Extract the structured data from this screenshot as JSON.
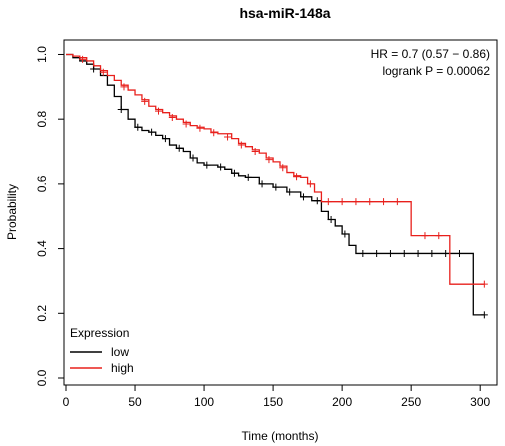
{
  "chart_data": {
    "type": "line",
    "subtype": "kaplan-meier",
    "title": "hsa-miR-148a",
    "xlabel": "Time (months)",
    "ylabel": "Probability",
    "xlim": [
      0,
      310
    ],
    "ylim": [
      0,
      1.02
    ],
    "x_ticks": [
      0,
      50,
      100,
      150,
      200,
      250,
      300
    ],
    "y_ticks": [
      0.0,
      0.2,
      0.4,
      0.6,
      0.8,
      1.0
    ],
    "x_tick_labels": [
      "0",
      "50",
      "100",
      "150",
      "200",
      "250",
      "300"
    ],
    "y_tick_labels": [
      "0.0",
      "0.2",
      "0.4",
      "0.6",
      "0.8",
      "1.0"
    ],
    "grid": false,
    "legend": {
      "title": "Expression",
      "placement": "bottom-left",
      "entries": [
        "low",
        "high"
      ]
    },
    "annotations": [
      "HR = 0.7 (0.57 − 0.86)",
      "logrank P = 0.00062"
    ],
    "series": [
      {
        "name": "low",
        "color": "#000000",
        "steps": [
          [
            0,
            1.0
          ],
          [
            5,
            0.99
          ],
          [
            10,
            0.98
          ],
          [
            15,
            0.97
          ],
          [
            20,
            0.955
          ],
          [
            25,
            0.935
          ],
          [
            30,
            0.905
          ],
          [
            35,
            0.87
          ],
          [
            40,
            0.83
          ],
          [
            45,
            0.8
          ],
          [
            50,
            0.775
          ],
          [
            55,
            0.765
          ],
          [
            60,
            0.76
          ],
          [
            65,
            0.75
          ],
          [
            70,
            0.74
          ],
          [
            75,
            0.72
          ],
          [
            80,
            0.71
          ],
          [
            85,
            0.7
          ],
          [
            90,
            0.68
          ],
          [
            95,
            0.665
          ],
          [
            100,
            0.658
          ],
          [
            110,
            0.652
          ],
          [
            115,
            0.645
          ],
          [
            120,
            0.633
          ],
          [
            125,
            0.625
          ],
          [
            130,
            0.62
          ],
          [
            140,
            0.6
          ],
          [
            150,
            0.59
          ],
          [
            160,
            0.575
          ],
          [
            170,
            0.56
          ],
          [
            178,
            0.548
          ],
          [
            185,
            0.515
          ],
          [
            190,
            0.49
          ],
          [
            195,
            0.47
          ],
          [
            200,
            0.445
          ],
          [
            205,
            0.41
          ],
          [
            210,
            0.385
          ],
          [
            295,
            0.195
          ],
          [
            303,
            0.195
          ]
        ],
        "censors": [
          [
            20,
            0.955
          ],
          [
            40,
            0.83
          ],
          [
            52,
            0.775
          ],
          [
            62,
            0.76
          ],
          [
            72,
            0.74
          ],
          [
            82,
            0.71
          ],
          [
            92,
            0.68
          ],
          [
            102,
            0.658
          ],
          [
            112,
            0.652
          ],
          [
            122,
            0.633
          ],
          [
            132,
            0.62
          ],
          [
            142,
            0.6
          ],
          [
            152,
            0.59
          ],
          [
            162,
            0.575
          ],
          [
            172,
            0.56
          ],
          [
            182,
            0.548
          ],
          [
            192,
            0.49
          ],
          [
            202,
            0.445
          ],
          [
            215,
            0.385
          ],
          [
            225,
            0.385
          ],
          [
            235,
            0.385
          ],
          [
            245,
            0.385
          ],
          [
            255,
            0.385
          ],
          [
            265,
            0.385
          ],
          [
            275,
            0.385
          ],
          [
            285,
            0.385
          ],
          [
            303,
            0.195
          ]
        ]
      },
      {
        "name": "high",
        "color": "#e8201c",
        "steps": [
          [
            0,
            1.0
          ],
          [
            5,
            0.995
          ],
          [
            10,
            0.99
          ],
          [
            15,
            0.98
          ],
          [
            20,
            0.965
          ],
          [
            25,
            0.95
          ],
          [
            30,
            0.935
          ],
          [
            35,
            0.92
          ],
          [
            40,
            0.905
          ],
          [
            45,
            0.89
          ],
          [
            50,
            0.875
          ],
          [
            55,
            0.86
          ],
          [
            60,
            0.84
          ],
          [
            65,
            0.83
          ],
          [
            70,
            0.82
          ],
          [
            75,
            0.81
          ],
          [
            80,
            0.8
          ],
          [
            85,
            0.79
          ],
          [
            90,
            0.78
          ],
          [
            95,
            0.775
          ],
          [
            100,
            0.77
          ],
          [
            105,
            0.76
          ],
          [
            110,
            0.755
          ],
          [
            120,
            0.74
          ],
          [
            125,
            0.725
          ],
          [
            130,
            0.715
          ],
          [
            135,
            0.705
          ],
          [
            140,
            0.695
          ],
          [
            145,
            0.68
          ],
          [
            150,
            0.668
          ],
          [
            155,
            0.655
          ],
          [
            160,
            0.635
          ],
          [
            165,
            0.625
          ],
          [
            170,
            0.62
          ],
          [
            175,
            0.6
          ],
          [
            180,
            0.575
          ],
          [
            185,
            0.545
          ],
          [
            250,
            0.44
          ],
          [
            278,
            0.29
          ],
          [
            303,
            0.29
          ]
        ],
        "censors": [
          [
            12,
            0.985
          ],
          [
            27,
            0.945
          ],
          [
            42,
            0.9
          ],
          [
            57,
            0.855
          ],
          [
            67,
            0.825
          ],
          [
            77,
            0.805
          ],
          [
            87,
            0.785
          ],
          [
            97,
            0.772
          ],
          [
            107,
            0.758
          ],
          [
            117,
            0.745
          ],
          [
            127,
            0.72
          ],
          [
            137,
            0.7
          ],
          [
            147,
            0.675
          ],
          [
            157,
            0.65
          ],
          [
            167,
            0.622
          ],
          [
            177,
            0.6
          ],
          [
            190,
            0.545
          ],
          [
            200,
            0.545
          ],
          [
            210,
            0.545
          ],
          [
            220,
            0.545
          ],
          [
            230,
            0.545
          ],
          [
            240,
            0.545
          ],
          [
            260,
            0.44
          ],
          [
            270,
            0.44
          ],
          [
            303,
            0.29
          ]
        ]
      }
    ]
  }
}
